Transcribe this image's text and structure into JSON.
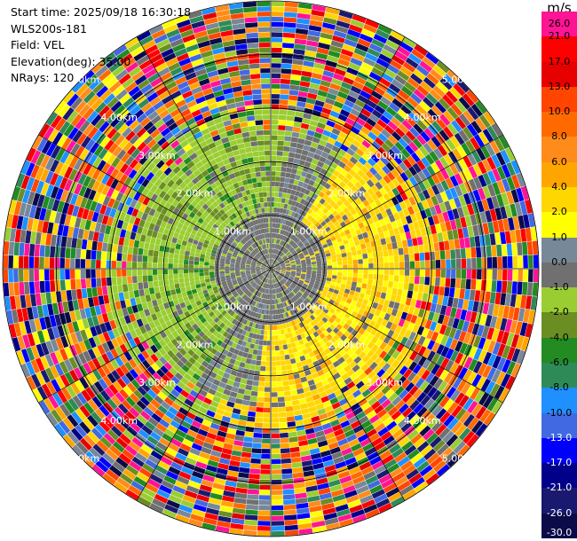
{
  "header": {
    "start_time": "Start time: 2025/09/18 16:30:18",
    "instrument": "WLS200s-181",
    "field": "Field: VEL",
    "elevation": "Elevation(deg): 35.00",
    "nrays": "NRays: 120"
  },
  "colorbar": {
    "unit": "m/s",
    "ticks": [
      "26.0",
      "21.0",
      "17.0",
      "13.0",
      "10.0",
      "8.0",
      "6.0",
      "4.0",
      "2.0",
      "1.0",
      "0.0",
      "-1.0",
      "-2.0",
      "-4.0",
      "-6.0",
      "-8.0",
      "-10.0",
      "-13.0",
      "-17.0",
      "-21.0",
      "-26.0",
      "-30.0"
    ],
    "colors": [
      "#ff1493",
      "#ff0000",
      "#e60000",
      "#ff4500",
      "#ff6a00",
      "#ff8c1a",
      "#ffa500",
      "#ffd700",
      "#ffff00",
      "#778899",
      "#707070",
      "#9acd32",
      "#6b8e23",
      "#228b22",
      "#2e8b57",
      "#1e90ff",
      "#4169e1",
      "#0000ff",
      "#00008b",
      "#191970",
      "#0b0b4a"
    ]
  },
  "chart_data": {
    "type": "heatmap",
    "title": "",
    "field": "VEL",
    "units": "m/s",
    "elevation_deg": 35.0,
    "n_rays": 120,
    "range_rings_km": [
      1.0,
      2.0,
      3.0,
      4.0,
      5.0
    ],
    "range_ring_labels": [
      "1.00km",
      "2.00km",
      "3.00km",
      "4.00km",
      "5.00km"
    ],
    "max_range_km": 5.0,
    "color_scale": {
      "min": -30.0,
      "max": 26.0,
      "boundaries": [
        -30.0,
        -26.0,
        -21.0,
        -17.0,
        -13.0,
        -10.0,
        -8.0,
        -6.0,
        -4.0,
        -2.0,
        -1.0,
        0.0,
        1.0,
        2.0,
        4.0,
        6.0,
        8.0,
        10.0,
        13.0,
        17.0,
        21.0,
        26.0
      ]
    },
    "pattern": {
      "near_range_km": 1.0,
      "near_range_velocity": "0.0",
      "coherent_range_km": 2.5,
      "positive_sector": "east to south-east (yellow, 1.0 to 4.0 m/s)",
      "negative_sector": "west to north-west (green, -1.0 to -2.0 m/s)",
      "outer_range": "noise beyond ~3 km"
    }
  }
}
